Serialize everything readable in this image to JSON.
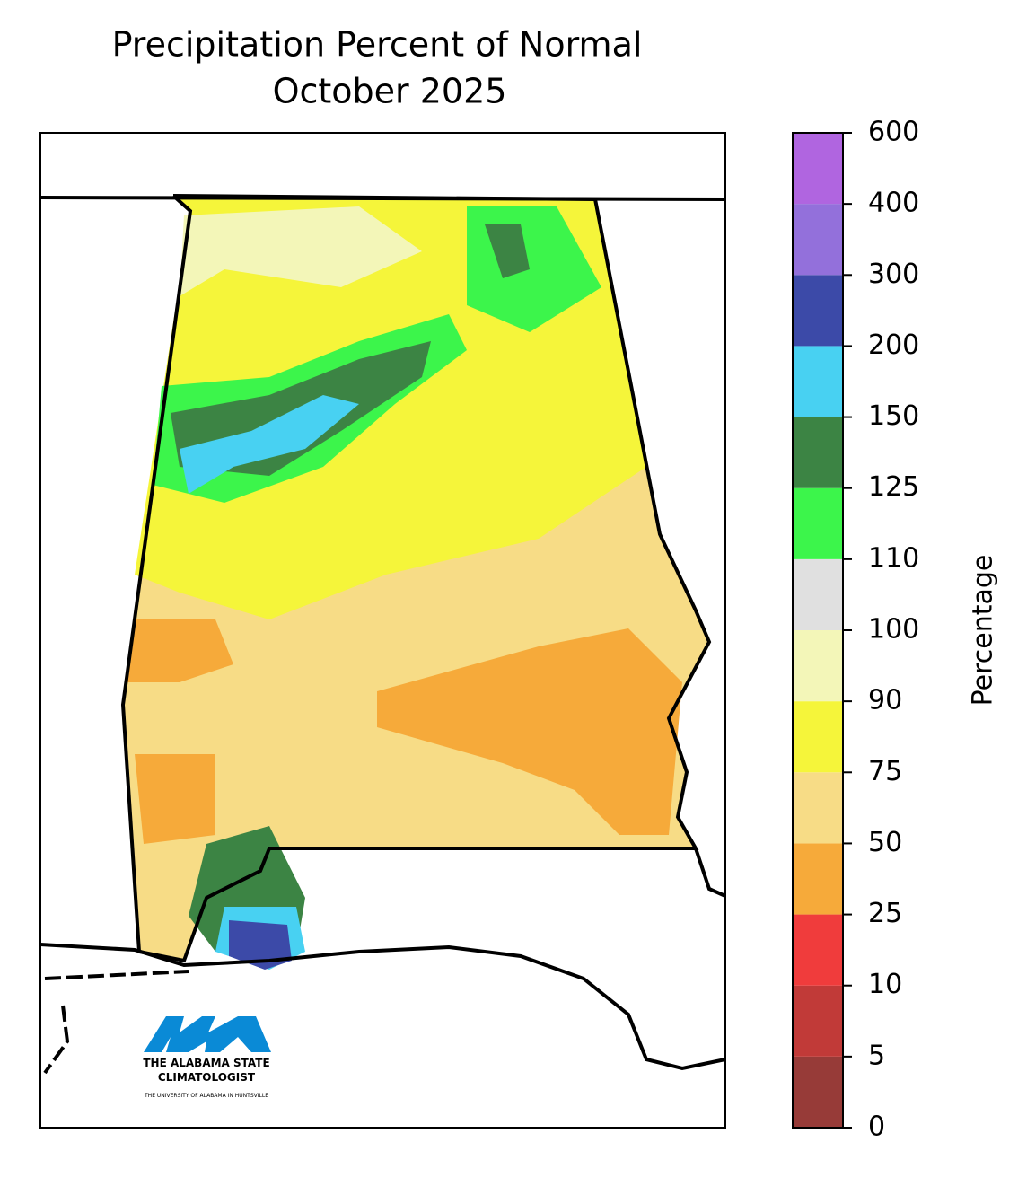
{
  "title": [
    "Precipitation Percent of Normal",
    "October 2025"
  ],
  "colorbar": {
    "label": "Percentage",
    "ticks": [
      0,
      5,
      10,
      25,
      50,
      75,
      90,
      100,
      110,
      125,
      150,
      200,
      300,
      400,
      600
    ],
    "colors": [
      "#973b38",
      "#c13a38",
      "#f03c3c",
      "#f6aa3a",
      "#f7dc86",
      "#f5f53a",
      "#f3f6b8",
      "#e0e0e0",
      "#3cf54b",
      "#3c8444",
      "#48d1f2",
      "#3c4aa8",
      "#9370db",
      "#b065e0"
    ]
  },
  "logo": {
    "line1": "THE ALABAMA STATE",
    "line2": "CLIMATOLOGIST",
    "line3": "THE UNIVERSITY OF ALABAMA IN HUNTSVILLE"
  }
}
